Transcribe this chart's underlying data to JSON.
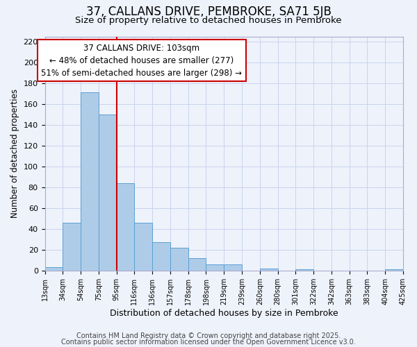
{
  "title": "37, CALLANS DRIVE, PEMBROKE, SA71 5JB",
  "subtitle": "Size of property relative to detached houses in Pembroke",
  "xlabel": "Distribution of detached houses by size in Pembroke",
  "ylabel": "Number of detached properties",
  "bar_labels": [
    "13sqm",
    "34sqm",
    "54sqm",
    "75sqm",
    "95sqm",
    "116sqm",
    "136sqm",
    "157sqm",
    "178sqm",
    "198sqm",
    "219sqm",
    "239sqm",
    "260sqm",
    "280sqm",
    "301sqm",
    "322sqm",
    "342sqm",
    "363sqm",
    "383sqm",
    "404sqm",
    "425sqm"
  ],
  "bar_values": [
    3,
    46,
    171,
    150,
    84,
    46,
    27,
    22,
    12,
    6,
    6,
    0,
    2,
    0,
    1,
    0,
    0,
    0,
    0,
    1
  ],
  "bar_color": "#aecce8",
  "bar_edge_color": "#5a9fd4",
  "background_color": "#eef2fb",
  "grid_color": "#c8d4ee",
  "vertical_line_x": 4.0,
  "vertical_line_color": "#cc0000",
  "annotation_text": "37 CALLANS DRIVE: 103sqm\n← 48% of detached houses are smaller (277)\n51% of semi-detached houses are larger (298) →",
  "annotation_box_color": "#ffffff",
  "annotation_box_edge": "#cc0000",
  "ylim": [
    0,
    225
  ],
  "yticks": [
    0,
    20,
    40,
    60,
    80,
    100,
    120,
    140,
    160,
    180,
    200,
    220
  ],
  "footer_line1": "Contains HM Land Registry data © Crown copyright and database right 2025.",
  "footer_line2": "Contains public sector information licensed under the Open Government Licence v3.0.",
  "title_fontsize": 12,
  "subtitle_fontsize": 9.5,
  "annotation_fontsize": 8.5,
  "footer_fontsize": 7.0,
  "ylabel_fontsize": 8.5,
  "xlabel_fontsize": 9.0
}
